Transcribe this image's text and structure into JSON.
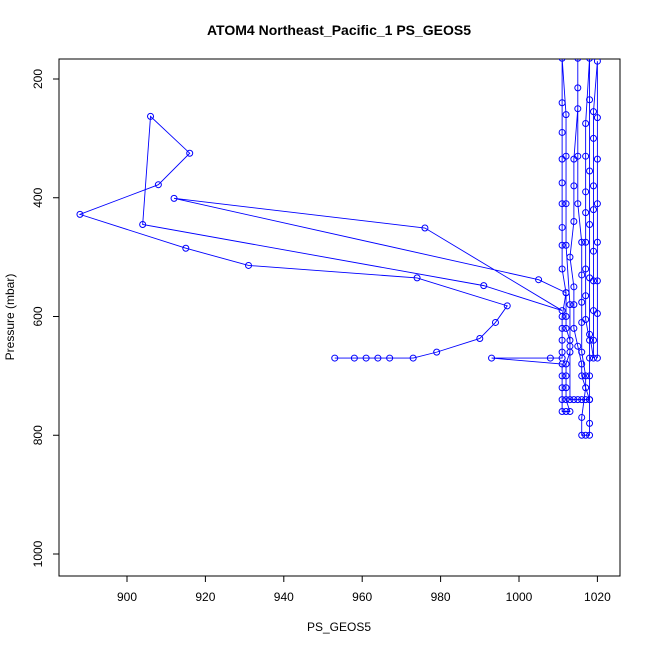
{
  "chart_data": {
    "type": "line",
    "title": "ATOM4 Northeast_Pacific_1 PS_GEOS5",
    "xlabel": "PS_GEOS5",
    "ylabel": "Pressure (mbar)",
    "xlim": [
      885,
      1025
    ],
    "ylim": [
      1040,
      165
    ],
    "y_reversed": true,
    "grid": false,
    "legend": "none",
    "x_ticks": [
      900,
      920,
      940,
      960,
      980,
      1000,
      1020
    ],
    "x_tick_labels": [
      "900",
      "920",
      "940",
      "960",
      "980",
      "1000",
      "1020"
    ],
    "y_ticks": [
      200,
      400,
      600,
      800,
      1000
    ],
    "y_tick_labels": [
      "200",
      "400",
      "600",
      "800",
      "1000"
    ],
    "colors": {
      "series": "#0000ff",
      "axis": "#000000",
      "background": "#ffffff"
    },
    "series": [
      {
        "marker": "open-circle",
        "points": [
          [
            953,
            670
          ],
          [
            958,
            670
          ],
          [
            961,
            670
          ],
          [
            964,
            670
          ],
          [
            967,
            670
          ],
          [
            973,
            670
          ],
          [
            979,
            660
          ],
          [
            990,
            637
          ],
          [
            994,
            610
          ],
          [
            997,
            582
          ],
          [
            974,
            535
          ],
          [
            931,
            514
          ],
          [
            915,
            485
          ],
          [
            888,
            428
          ],
          [
            908,
            378
          ],
          [
            916,
            325
          ],
          [
            906,
            263
          ],
          [
            904,
            445
          ],
          [
            991,
            548
          ],
          [
            1011,
            590
          ],
          [
            976,
            451
          ],
          [
            912,
            401
          ],
          [
            1005,
            538
          ],
          [
            1012,
            560
          ],
          [
            1011,
            600
          ],
          [
            1011,
            620
          ],
          [
            1011,
            640
          ],
          [
            1011,
            660
          ],
          [
            1011,
            670
          ],
          [
            1008,
            670
          ],
          [
            993,
            670
          ],
          [
            1011,
            680
          ],
          [
            1011,
            700
          ],
          [
            1011,
            720
          ],
          [
            1011,
            740
          ],
          [
            1011,
            760
          ],
          [
            1012,
            760
          ],
          [
            1013,
            760
          ],
          [
            1012,
            740
          ],
          [
            1012,
            720
          ],
          [
            1012,
            700
          ],
          [
            1012,
            680
          ],
          [
            1013,
            660
          ],
          [
            1013,
            640
          ],
          [
            1012,
            620
          ],
          [
            1012,
            600
          ],
          [
            1012,
            560
          ],
          [
            1011,
            520
          ],
          [
            1011,
            480
          ],
          [
            1011,
            450
          ],
          [
            1011,
            410
          ],
          [
            1011,
            375
          ],
          [
            1011,
            335
          ],
          [
            1011,
            290
          ],
          [
            1011,
            240
          ],
          [
            1011,
            165
          ],
          [
            1012,
            260
          ],
          [
            1012,
            330
          ],
          [
            1012,
            410
          ],
          [
            1012,
            480
          ],
          [
            1013,
            580
          ],
          [
            1013,
            650
          ],
          [
            1013,
            740
          ],
          [
            1014,
            740
          ],
          [
            1015,
            740
          ],
          [
            1016,
            740
          ],
          [
            1017,
            740
          ],
          [
            1018,
            740
          ],
          [
            1016,
            700
          ],
          [
            1016,
            680
          ],
          [
            1015,
            650
          ],
          [
            1014,
            620
          ],
          [
            1014,
            580
          ],
          [
            1014,
            550
          ],
          [
            1013,
            500
          ],
          [
            1014,
            440
          ],
          [
            1014,
            380
          ],
          [
            1014,
            335
          ],
          [
            1015,
            250
          ],
          [
            1015,
            165
          ],
          [
            1015,
            215
          ],
          [
            1015,
            330
          ],
          [
            1015,
            410
          ],
          [
            1016,
            475
          ],
          [
            1016,
            530
          ],
          [
            1016,
            576
          ],
          [
            1016,
            610
          ],
          [
            1016,
            660
          ],
          [
            1017,
            700
          ],
          [
            1017,
            720
          ],
          [
            1016,
            770
          ],
          [
            1016,
            800
          ],
          [
            1017,
            800
          ],
          [
            1018,
            800
          ],
          [
            1018,
            780
          ],
          [
            1018,
            740
          ],
          [
            1018,
            700
          ],
          [
            1018,
            670
          ],
          [
            1018,
            640
          ],
          [
            1017,
            605
          ],
          [
            1017,
            565
          ],
          [
            1017,
            520
          ],
          [
            1017,
            475
          ],
          [
            1017,
            425
          ],
          [
            1017,
            390
          ],
          [
            1017,
            330
          ],
          [
            1017,
            275
          ],
          [
            1018,
            165
          ],
          [
            1018,
            235
          ],
          [
            1018,
            355
          ],
          [
            1018,
            445
          ],
          [
            1018,
            535
          ],
          [
            1018,
            630
          ],
          [
            1019,
            670
          ],
          [
            1019,
            640
          ],
          [
            1019,
            590
          ],
          [
            1019,
            540
          ],
          [
            1019,
            490
          ],
          [
            1019,
            420
          ],
          [
            1019,
            380
          ],
          [
            1019,
            300
          ],
          [
            1019,
            255
          ],
          [
            1020,
            170
          ],
          [
            1020,
            265
          ],
          [
            1020,
            335
          ],
          [
            1020,
            410
          ],
          [
            1020,
            475
          ],
          [
            1020,
            540
          ],
          [
            1020,
            595
          ],
          [
            1020,
            670
          ]
        ]
      }
    ]
  }
}
